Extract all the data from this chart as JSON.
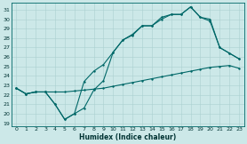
{
  "xlabel": "Humidex (Indice chaleur)",
  "bg_color": "#cce8e8",
  "line_color": "#006868",
  "grid_color": "#aad0d0",
  "xlim": [
    -0.5,
    23.5
  ],
  "ylim": [
    18.7,
    31.7
  ],
  "xticks": [
    0,
    1,
    2,
    3,
    4,
    5,
    6,
    7,
    8,
    9,
    10,
    11,
    12,
    13,
    14,
    15,
    16,
    17,
    18,
    19,
    20,
    21,
    22,
    23
  ],
  "yticks": [
    19,
    20,
    21,
    22,
    23,
    24,
    25,
    26,
    27,
    28,
    29,
    30,
    31
  ],
  "line1_x": [
    0,
    1,
    2,
    3,
    4,
    5,
    6,
    7,
    8,
    9,
    10,
    11,
    12,
    13,
    14,
    15,
    16,
    17,
    18,
    19,
    20,
    21,
    22,
    23
  ],
  "line1_y": [
    22.7,
    22.1,
    22.3,
    22.3,
    22.3,
    22.3,
    22.4,
    22.5,
    22.6,
    22.7,
    22.9,
    23.1,
    23.3,
    23.5,
    23.7,
    23.9,
    24.1,
    24.3,
    24.5,
    24.7,
    24.9,
    25.0,
    25.1,
    24.8
  ],
  "line2_x": [
    0,
    1,
    2,
    3,
    4,
    5,
    6,
    7,
    8,
    9,
    10,
    11,
    12,
    13,
    14,
    15,
    16,
    17,
    18,
    19,
    20,
    21,
    22,
    23
  ],
  "line2_y": [
    22.7,
    22.1,
    22.3,
    22.3,
    21.0,
    19.4,
    20.0,
    20.6,
    22.5,
    23.5,
    26.5,
    27.8,
    28.4,
    29.3,
    29.3,
    30.0,
    30.5,
    30.5,
    31.3,
    30.2,
    29.8,
    27.0,
    26.4,
    25.8
  ],
  "line3_x": [
    0,
    1,
    2,
    3,
    4,
    5,
    6,
    7,
    8,
    9,
    10,
    11,
    12,
    13,
    14,
    15,
    16,
    17,
    18,
    19,
    20,
    21,
    22,
    23
  ],
  "line3_y": [
    22.7,
    22.1,
    22.3,
    22.3,
    21.0,
    19.4,
    20.0,
    23.4,
    24.5,
    25.2,
    26.5,
    27.8,
    28.3,
    29.3,
    29.3,
    30.2,
    30.5,
    30.5,
    31.3,
    30.2,
    30.0,
    27.0,
    26.4,
    25.8
  ],
  "linewidth": 0.8,
  "markersize": 2.0
}
